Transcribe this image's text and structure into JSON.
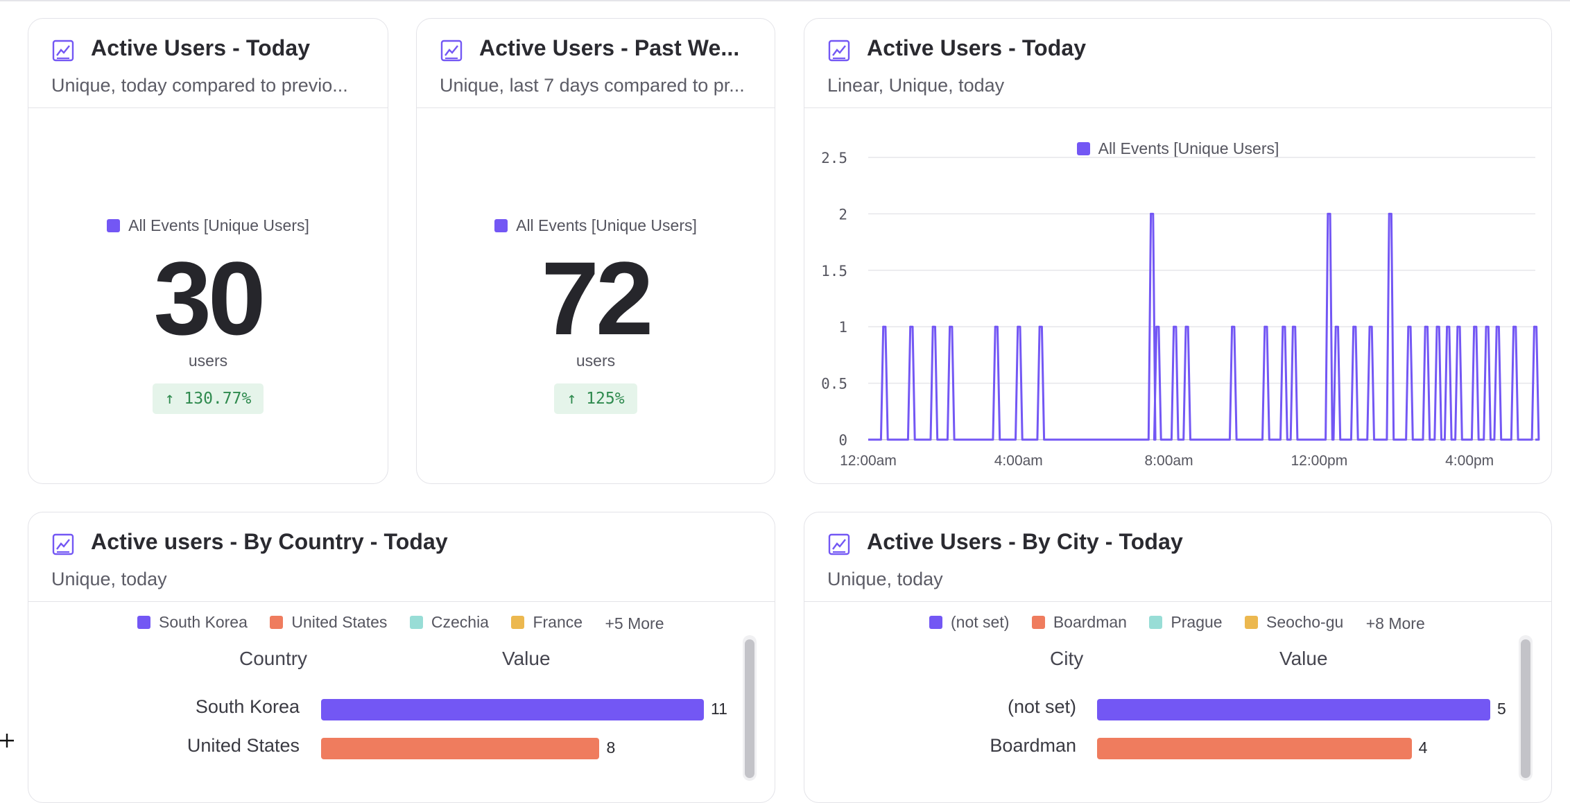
{
  "colors": {
    "accent": "#7357f4",
    "series": [
      "#7357f4",
      "#ef7c5e",
      "#98ddd6",
      "#ecb84f"
    ],
    "positive": "#2e8a4e"
  },
  "cards": [
    {
      "title": "Active Users - Today",
      "subtitle": "Unique, today compared to previo...",
      "icon": "line-chart-icon",
      "legend": "All Events [Unique Users]",
      "value": "30",
      "unit": "users",
      "delta": "↑ 130.77%"
    },
    {
      "title": "Active Users - Past We...",
      "subtitle": "Unique, last 7 days compared to pr...",
      "icon": "line-chart-icon",
      "legend": "All Events [Unique Users]",
      "value": "72",
      "unit": "users",
      "delta": "↑ 125%"
    },
    {
      "title": "Active Users - Today",
      "subtitle": "Linear, Unique, today",
      "icon": "line-chart-icon",
      "legend": "All Events [Unique Users]"
    },
    {
      "title": "Active users - By Country - Today",
      "subtitle": "Unique, today",
      "icon": "line-chart-icon",
      "legend": [
        "South Korea",
        "United States",
        "Czechia",
        "France"
      ],
      "more": "+5 More",
      "col_label": "Country",
      "col_value": "Value"
    },
    {
      "title": "Active Users - By City - Today",
      "subtitle": "Unique, today",
      "icon": "line-chart-icon",
      "legend": [
        "(not set)",
        "Boardman",
        "Prague",
        "Seocho-gu"
      ],
      "more": "+8 More",
      "col_label": "City",
      "col_value": "Value"
    }
  ],
  "chart_data": [
    {
      "type": "line",
      "series": [
        {
          "name": "All Events [Unique Users]"
        }
      ],
      "x_unit": "hours since 12:00am",
      "x_range": [
        0,
        17.75
      ],
      "ylim": [
        0,
        2.5
      ],
      "yticks": [
        "0",
        "0.5",
        "1",
        "1.5",
        "2",
        "2.5"
      ],
      "xticks": [
        "12:00am",
        "4:00am",
        "8:00am",
        "12:00pm",
        "4:00pm"
      ],
      "xtick_hours": [
        0,
        4,
        8,
        12,
        16
      ],
      "grid": true,
      "legend": "top",
      "spikes": [
        {
          "x": 0.4,
          "y": 1
        },
        {
          "x": 1.12,
          "y": 1
        },
        {
          "x": 1.72,
          "y": 1
        },
        {
          "x": 2.17,
          "y": 1
        },
        {
          "x": 3.38,
          "y": 1
        },
        {
          "x": 3.98,
          "y": 1
        },
        {
          "x": 4.56,
          "y": 1
        },
        {
          "x": 7.52,
          "y": 2
        },
        {
          "x": 7.67,
          "y": 1
        },
        {
          "x": 8.13,
          "y": 1
        },
        {
          "x": 8.45,
          "y": 1
        },
        {
          "x": 9.68,
          "y": 1
        },
        {
          "x": 10.55,
          "y": 1
        },
        {
          "x": 11.03,
          "y": 1
        },
        {
          "x": 11.3,
          "y": 1
        },
        {
          "x": 12.23,
          "y": 2
        },
        {
          "x": 12.44,
          "y": 1
        },
        {
          "x": 12.91,
          "y": 1
        },
        {
          "x": 13.34,
          "y": 1
        },
        {
          "x": 13.86,
          "y": 2
        },
        {
          "x": 14.37,
          "y": 1
        },
        {
          "x": 14.82,
          "y": 1
        },
        {
          "x": 15.13,
          "y": 1
        },
        {
          "x": 15.4,
          "y": 1
        },
        {
          "x": 15.68,
          "y": 1
        },
        {
          "x": 16.12,
          "y": 1
        },
        {
          "x": 16.44,
          "y": 1
        },
        {
          "x": 16.72,
          "y": 1
        },
        {
          "x": 17.17,
          "y": 1
        },
        {
          "x": 17.72,
          "y": 1
        }
      ]
    },
    {
      "type": "bar",
      "categories": [
        "South Korea",
        "United States"
      ],
      "values": [
        11,
        8
      ]
    },
    {
      "type": "bar",
      "categories": [
        "(not set)",
        "Boardman"
      ],
      "values": [
        5,
        4
      ]
    }
  ]
}
